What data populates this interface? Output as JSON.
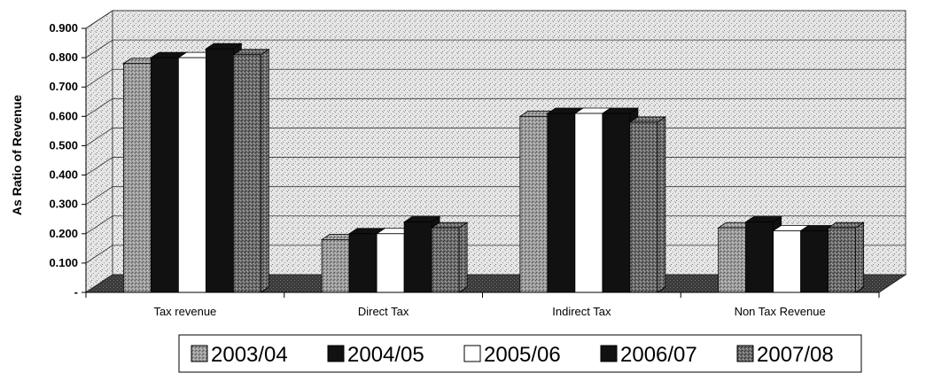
{
  "chart_data": {
    "type": "bar",
    "title": "",
    "xlabel": "",
    "ylabel": "As Ratio of Revenue",
    "ylim": [
      0,
      0.9
    ],
    "yticks": [
      0,
      0.1,
      0.2,
      0.3,
      0.4,
      0.5,
      0.6,
      0.7,
      0.8,
      0.9
    ],
    "ytick_labels": [
      "-",
      "0.100",
      "0.200",
      "0.300",
      "0.400",
      "0.500",
      "0.600",
      "0.700",
      "0.800",
      "0.900"
    ],
    "grid": true,
    "legend_position": "bottom",
    "categories": [
      "Tax revenue",
      "Direct Tax",
      "Indirect Tax",
      "Non Tax Revenue"
    ],
    "series": [
      {
        "name": "2003/04",
        "values": [
          0.78,
          0.18,
          0.6,
          0.22
        ],
        "color": "#8f8f8f",
        "pattern": "speckle-light"
      },
      {
        "name": "2004/05",
        "values": [
          0.8,
          0.2,
          0.61,
          0.24
        ],
        "color": "#111111",
        "pattern": "solid"
      },
      {
        "name": "2005/06",
        "values": [
          0.8,
          0.2,
          0.61,
          0.21
        ],
        "color": "#ffffff",
        "pattern": "solid"
      },
      {
        "name": "2006/07",
        "values": [
          0.83,
          0.24,
          0.61,
          0.21
        ],
        "color": "#111111",
        "pattern": "solid"
      },
      {
        "name": "2007/08",
        "values": [
          0.81,
          0.22,
          0.58,
          0.22
        ],
        "color": "#6e6e6e",
        "pattern": "speckle-dark"
      }
    ]
  }
}
